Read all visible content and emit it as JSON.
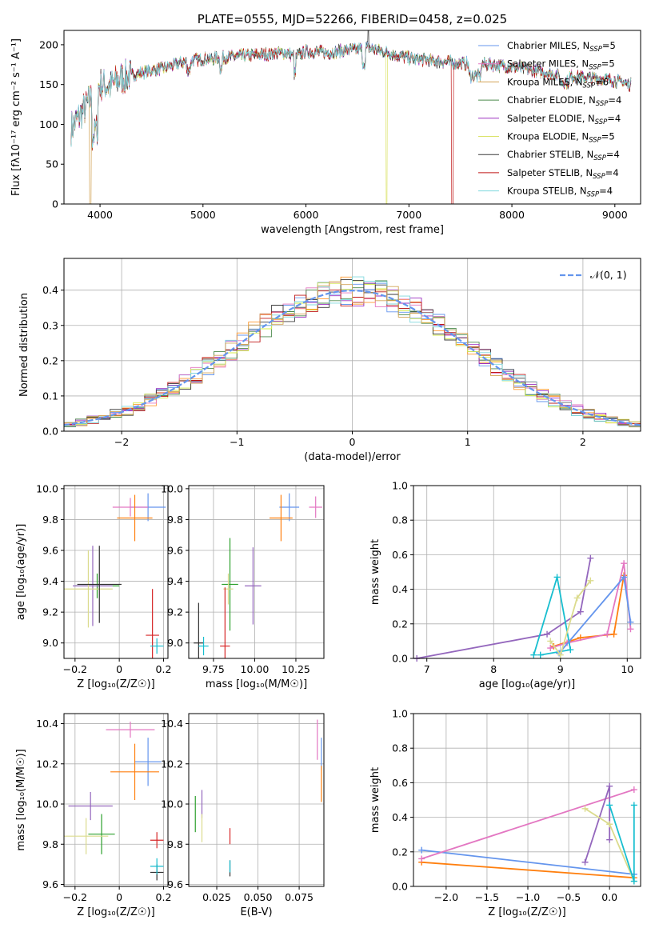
{
  "palette": [
    "#6495ed",
    "#e377c2",
    "#ff7f0e",
    "#2ca02c",
    "#9467bd",
    "#dbdb8d",
    "#2f2f2f",
    "#d62728",
    "#17becf"
  ],
  "chart_data": [
    {
      "id": "spectrum",
      "type": "line",
      "title": "PLATE=0555, MJD=52266, FIBERID=0458, z=0.025",
      "xlabel": "wavelength [Angstrom, rest frame]",
      "ylabel": "Flux [fλ10⁻¹⁷ erg cm⁻² s⁻¹ A⁻¹]",
      "xlim": [
        3650,
        9250
      ],
      "ylim": [
        0,
        218
      ],
      "xticks": [
        4000,
        5000,
        6000,
        7000,
        8000,
        9000
      ],
      "yticks": [
        0,
        50,
        100,
        150,
        200
      ],
      "legend_position": "upper-right",
      "series": [
        {
          "name": "Chabrier MILES, N_SSP=5",
          "color": "#6495ed"
        },
        {
          "name": "Salpeter MILES, N_SSP=5",
          "color": "#e377c2"
        },
        {
          "name": "Kroupa MILES, N_SSP=6",
          "color": "#d2a356"
        },
        {
          "name": "Chabrier ELODIE, N_SSP=4",
          "color": "#4c8a4c"
        },
        {
          "name": "Salpeter ELODIE, N_SSP=4",
          "color": "#9b30c0"
        },
        {
          "name": "Kroupa ELODIE, N_SSP=5",
          "color": "#dbe36a"
        },
        {
          "name": "Chabrier STELIB, N_SSP=4",
          "color": "#3a3a3a"
        },
        {
          "name": "Salpeter STELIB, N_SSP=4",
          "color": "#c01818"
        },
        {
          "name": "Kroupa STELIB, N_SSP=4",
          "color": "#7fd8de"
        }
      ],
      "continuum_x": [
        3720,
        3800,
        3900,
        3950,
        4000,
        4100,
        4200,
        4400,
        4600,
        4800,
        5000,
        5200,
        5400,
        5600,
        5800,
        5900,
        6000,
        6200,
        6400,
        6600,
        6800,
        7000,
        7200,
        7400,
        7600,
        7800,
        8000,
        8200,
        8400,
        8600,
        8800,
        9000,
        9150
      ],
      "continuum_y": [
        95,
        110,
        130,
        140,
        150,
        148,
        158,
        165,
        170,
        178,
        182,
        184,
        186,
        188,
        190,
        185,
        192,
        190,
        193,
        196,
        190,
        183,
        180,
        178,
        176,
        175,
        172,
        168,
        163,
        160,
        158,
        155,
        150
      ]
    },
    {
      "id": "residuals",
      "type": "histogram",
      "xlabel": "(data-model)/error",
      "ylabel": "Normed distribution",
      "xlim": [
        -2.5,
        2.5
      ],
      "ylim": [
        0,
        0.49
      ],
      "xticks": [
        -2,
        -1,
        0,
        1,
        2
      ],
      "yticks": [
        0.0,
        0.1,
        0.2,
        0.3,
        0.4
      ],
      "legend": {
        "label": "𝒩(0, 1)",
        "position": "upper-right"
      },
      "bin_width": 0.1,
      "gaussian": {
        "mean": 0,
        "sigma": 1,
        "color": "#6495ed"
      }
    },
    {
      "id": "age-vs-Z",
      "type": "errorbar",
      "xlabel": "Z [log₁₀(Z/Z☉)]",
      "ylabel": "age  [log₁₀(age/yr)]",
      "xlim": [
        -0.25,
        0.22
      ],
      "ylim": [
        8.9,
        10.02
      ],
      "xticks": [
        -0.2,
        0.0,
        0.2
      ],
      "yticks": [
        9.0,
        9.2,
        9.4,
        9.6,
        9.8,
        10.0
      ],
      "points": [
        {
          "x": 0.13,
          "y": 9.88,
          "xerr": 0.08,
          "yerr": 0.09,
          "c": 0
        },
        {
          "x": 0.05,
          "y": 9.88,
          "xerr": 0.08,
          "yerr": 0.06,
          "c": 1
        },
        {
          "x": 0.07,
          "y": 9.81,
          "xerr": 0.08,
          "yerr": 0.15,
          "c": 2
        },
        {
          "x": -0.1,
          "y": 9.37,
          "xerr": 0.1,
          "yerr": 0.08,
          "c": 3
        },
        {
          "x": -0.12,
          "y": 9.37,
          "xerr": 0.09,
          "yerr": 0.26,
          "c": 4
        },
        {
          "x": -0.14,
          "y": 9.35,
          "xerr": 0.11,
          "yerr": 0.25,
          "c": 5
        },
        {
          "x": -0.09,
          "y": 9.38,
          "xerr": 0.1,
          "yerr": 0.25,
          "c": 6
        },
        {
          "x": 0.15,
          "y": 9.05,
          "xerr": 0.03,
          "yerr": 0.3,
          "c": 7
        },
        {
          "x": 0.17,
          "y": 8.98,
          "xerr": 0.03,
          "yerr": 0.05,
          "c": 8
        }
      ]
    },
    {
      "id": "age-vs-mass",
      "type": "errorbar",
      "xlabel": "mass [log₁₀(M/M☉)]",
      "ylabel": "",
      "xlim": [
        9.6,
        10.42
      ],
      "ylim": [
        8.9,
        10.02
      ],
      "xticks": [
        9.75,
        10.0,
        10.25
      ],
      "xticklabels": [
        "9.75",
        "10.00",
        "10.25"
      ],
      "yticks": [
        9.0,
        9.2,
        9.4,
        9.6,
        9.8,
        10.0
      ],
      "points": [
        {
          "x": 10.21,
          "y": 9.88,
          "xerr": 0.06,
          "yerr": 0.09,
          "c": 0
        },
        {
          "x": 10.37,
          "y": 9.88,
          "xerr": 0.04,
          "yerr": 0.07,
          "c": 1
        },
        {
          "x": 10.16,
          "y": 9.81,
          "xerr": 0.07,
          "yerr": 0.15,
          "c": 2
        },
        {
          "x": 9.85,
          "y": 9.38,
          "xerr": 0.05,
          "yerr": 0.3,
          "c": 3
        },
        {
          "x": 9.99,
          "y": 9.37,
          "xerr": 0.05,
          "yerr": 0.25,
          "c": 4
        },
        {
          "x": 9.84,
          "y": 9.35,
          "xerr": 0.03,
          "yerr": 0.1,
          "c": 5
        },
        {
          "x": 9.66,
          "y": 9.0,
          "xerr": 0.03,
          "yerr": 0.26,
          "c": 6
        },
        {
          "x": 9.82,
          "y": 8.98,
          "xerr": 0.03,
          "yerr": 0.38,
          "c": 7
        },
        {
          "x": 9.69,
          "y": 8.98,
          "xerr": 0.03,
          "yerr": 0.06,
          "c": 8
        }
      ]
    },
    {
      "id": "massweight-vs-age",
      "type": "line",
      "xlabel": "age  [log₁₀(age/yr)]",
      "ylabel": "mass weight",
      "xlim": [
        6.8,
        10.2
      ],
      "ylim": [
        0,
        1.0
      ],
      "xticks": [
        7,
        8,
        9,
        10
      ],
      "yticks": [
        0.0,
        0.2,
        0.4,
        0.6,
        0.8,
        1.0
      ],
      "series": [
        {
          "c": 4,
          "x": [
            6.85,
            8.8,
            9.3,
            9.45
          ],
          "y": [
            0.0,
            0.14,
            0.27,
            0.58
          ]
        },
        {
          "c": 2,
          "x": [
            8.9,
            9.3,
            9.8,
            9.95
          ],
          "y": [
            0.07,
            0.12,
            0.14,
            0.48
          ]
        },
        {
          "c": 1,
          "x": [
            8.85,
            9.1,
            9.7,
            9.95,
            10.05
          ],
          "y": [
            0.06,
            0.09,
            0.14,
            0.55,
            0.17
          ]
        },
        {
          "c": 8,
          "x": [
            8.6,
            8.95,
            9.15,
            8.7
          ],
          "y": [
            0.02,
            0.47,
            0.05,
            0.02
          ]
        },
        {
          "c": 0,
          "x": [
            8.98,
            9.95,
            10.05
          ],
          "y": [
            0.03,
            0.47,
            0.21
          ]
        },
        {
          "c": 5,
          "x": [
            8.85,
            9.0,
            9.25,
            9.45
          ],
          "y": [
            0.1,
            0.02,
            0.35,
            0.45
          ]
        }
      ]
    },
    {
      "id": "mass-vs-Z",
      "type": "errorbar",
      "xlabel": "Z [log₁₀(Z/Z☉)]",
      "ylabel": "mass [log₁₀(M/M☉)]",
      "xlim": [
        -0.25,
        0.22
      ],
      "ylim": [
        9.59,
        10.45
      ],
      "xticks": [
        -0.2,
        0.0,
        0.2
      ],
      "yticks": [
        9.6,
        9.8,
        10.0,
        10.2,
        10.4
      ],
      "points": [
        {
          "x": 0.13,
          "y": 10.21,
          "xerr": 0.06,
          "yerr": 0.12,
          "c": 0
        },
        {
          "x": 0.05,
          "y": 10.37,
          "xerr": 0.11,
          "yerr": 0.04,
          "c": 1
        },
        {
          "x": 0.07,
          "y": 10.16,
          "xerr": 0.11,
          "yerr": 0.14,
          "c": 2
        },
        {
          "x": -0.08,
          "y": 9.85,
          "xerr": 0.06,
          "yerr": 0.1,
          "c": 3
        },
        {
          "x": -0.13,
          "y": 9.99,
          "xerr": 0.1,
          "yerr": 0.07,
          "c": 4
        },
        {
          "x": -0.15,
          "y": 9.84,
          "xerr": 0.1,
          "yerr": 0.09,
          "c": 5
        },
        {
          "x": 0.17,
          "y": 9.66,
          "xerr": 0.03,
          "yerr": 0.04,
          "c": 6
        },
        {
          "x": 0.17,
          "y": 9.82,
          "xerr": 0.03,
          "yerr": 0.04,
          "c": 7
        },
        {
          "x": 0.17,
          "y": 9.69,
          "xerr": 0.03,
          "yerr": 0.04,
          "c": 8
        }
      ]
    },
    {
      "id": "mass-vs-EBV",
      "type": "errorbar",
      "xlabel": "E(B-V)",
      "ylabel": "",
      "xlim": [
        0.008,
        0.09
      ],
      "ylim": [
        9.59,
        10.45
      ],
      "xticks": [
        0.025,
        0.05,
        0.075
      ],
      "xticklabels": [
        "0.025",
        "0.050",
        "0.075"
      ],
      "yticks": [
        9.6,
        9.8,
        10.0,
        10.2,
        10.4
      ],
      "points": [
        {
          "x": 0.0885,
          "y": 10.25,
          "xerr": 0,
          "yerr": 0.08,
          "c": 0
        },
        {
          "x": 0.086,
          "y": 10.32,
          "xerr": 0,
          "yerr": 0.1,
          "c": 1
        },
        {
          "x": 0.0885,
          "y": 10.1,
          "xerr": 0,
          "yerr": 0.09,
          "c": 2
        },
        {
          "x": 0.012,
          "y": 9.95,
          "xerr": 0,
          "yerr": 0.09,
          "c": 3
        },
        {
          "x": 0.016,
          "y": 10.0,
          "xerr": 0,
          "yerr": 0.07,
          "c": 4
        },
        {
          "x": 0.016,
          "y": 9.88,
          "xerr": 0,
          "yerr": 0.07,
          "c": 5
        },
        {
          "x": 0.033,
          "y": 9.68,
          "xerr": 0,
          "yerr": 0.04,
          "c": 6
        },
        {
          "x": 0.033,
          "y": 9.84,
          "xerr": 0,
          "yerr": 0.04,
          "c": 7
        },
        {
          "x": 0.033,
          "y": 9.69,
          "xerr": 0,
          "yerr": 0.03,
          "c": 8
        }
      ]
    },
    {
      "id": "massweight-vs-Z",
      "type": "line",
      "xlabel": "Z [log₁₀(Z/Z☉)]",
      "ylabel": "mass weight",
      "xlim": [
        -2.4,
        0.38
      ],
      "ylim": [
        0,
        1.0
      ],
      "xticks": [
        -2.0,
        -1.5,
        -1.0,
        -0.5,
        0.0
      ],
      "xticklabels": [
        "−2.0",
        "−1.5",
        "−1.0",
        "−0.5",
        "0.0"
      ],
      "yticks": [
        0.0,
        0.2,
        0.4,
        0.6,
        0.8,
        1.0
      ],
      "series": [
        {
          "c": 0,
          "x": [
            -2.3,
            0.3
          ],
          "y": [
            0.21,
            0.07
          ]
        },
        {
          "c": 2,
          "x": [
            -2.3,
            0.3
          ],
          "y": [
            0.14,
            0.05
          ]
        },
        {
          "c": 1,
          "x": [
            -2.3,
            0.3
          ],
          "y": [
            0.16,
            0.56
          ]
        },
        {
          "c": 4,
          "x": [
            -0.3,
            0.0,
            0.0
          ],
          "y": [
            0.14,
            0.58,
            0.27
          ]
        },
        {
          "c": 5,
          "x": [
            -0.3,
            0.0,
            0.3
          ],
          "y": [
            0.45,
            0.36,
            0.03
          ]
        },
        {
          "c": 8,
          "x": [
            0.0,
            0.3,
            0.3
          ],
          "y": [
            0.47,
            0.03,
            0.47
          ]
        }
      ]
    }
  ]
}
